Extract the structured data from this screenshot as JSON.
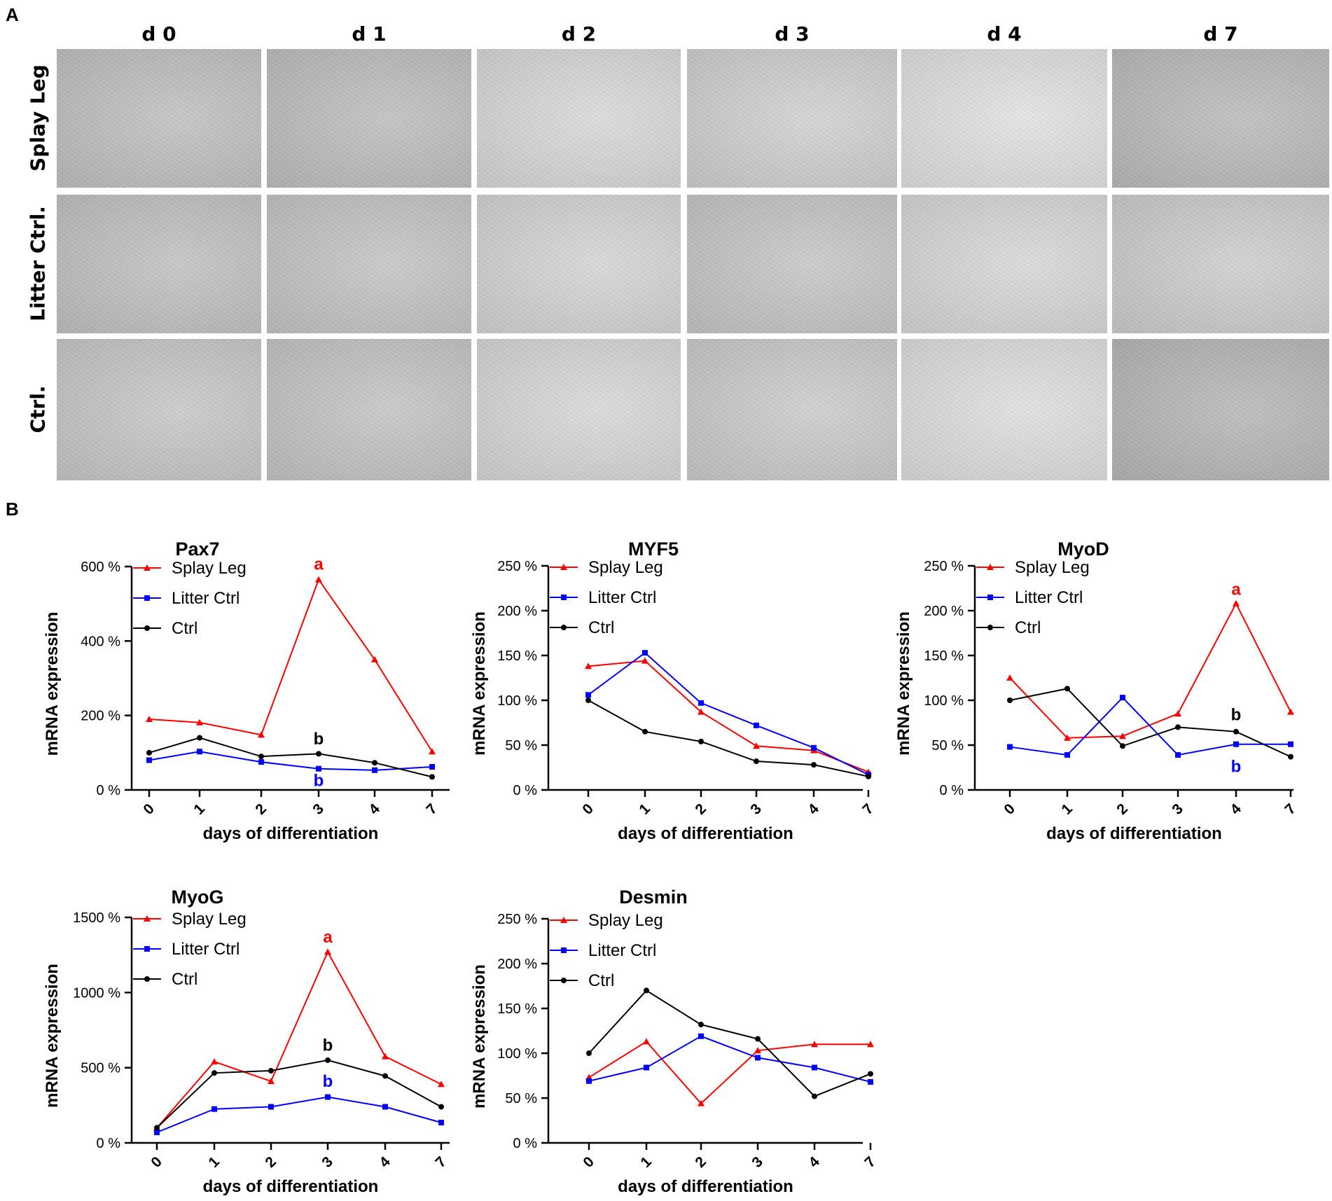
{
  "panelA": {
    "letter": "A",
    "columns": [
      "d 0",
      "d 1",
      "d 2",
      "d 3",
      "d 4",
      "d 7"
    ],
    "rows": [
      "Splay Leg",
      "Litter Ctrl.",
      "Ctrl."
    ],
    "image_tones": [
      [
        "#c2c2c2",
        "#c0c0c0",
        "#dadada",
        "#d2d2d2",
        "#e3e3e3",
        "#bdbdbd"
      ],
      [
        "#c3c3c3",
        "#c6c6c6",
        "#d6d6d6",
        "#c8c8c8",
        "#d9d9d9",
        "#cfcfcf"
      ],
      [
        "#c9c9c9",
        "#c6c6c6",
        "#d9d9d9",
        "#cdcdcd",
        "#e0e0e0",
        "#b9b9b9"
      ]
    ]
  },
  "panelB": {
    "letter": "B"
  },
  "chart_data": [
    {
      "type": "line",
      "title": "Pax7",
      "xlabel": "days of differentiation",
      "ylabel": "mRNA expression",
      "categories": [
        "0",
        "1",
        "2",
        "3",
        "4",
        "7"
      ],
      "yticks": [
        "0 %",
        "200 %",
        "400 %",
        "600 %"
      ],
      "ylim": [
        0,
        600
      ],
      "legend_position": "top-left",
      "series": [
        {
          "name": "Splay Leg",
          "color": "#ff0000",
          "marker": "triangle",
          "values": [
            190,
            181,
            148,
            565,
            350,
            103
          ]
        },
        {
          "name": "Litter Ctrl",
          "color": "#0000ff",
          "marker": "square",
          "values": [
            80,
            103,
            75,
            57,
            53,
            62
          ]
        },
        {
          "name": "Ctrl",
          "color": "#000000",
          "marker": "circle",
          "values": [
            100,
            140,
            90,
            97,
            73,
            35
          ]
        }
      ],
      "annotations": [
        {
          "text": "a",
          "color": "#ff0000",
          "x": "3",
          "y": 607
        },
        {
          "text": "b",
          "color": "#000000",
          "x": "3",
          "y": 137
        },
        {
          "text": "b",
          "color": "#0000ff",
          "x": "3",
          "y": 25
        }
      ]
    },
    {
      "type": "line",
      "title": "MYF5",
      "xlabel": "days of differentiation",
      "ylabel": "mRNA expression",
      "categories": [
        "0",
        "1",
        "2",
        "3",
        "4",
        "7"
      ],
      "yticks": [
        "0 %",
        "50 %",
        "100 %",
        "150 %",
        "200 %",
        "250 %"
      ],
      "ylim": [
        0,
        250
      ],
      "legend_position": "top-left",
      "series": [
        {
          "name": "Splay Leg",
          "color": "#ff0000",
          "marker": "triangle",
          "values": [
            138,
            144,
            87,
            49,
            44,
            20
          ]
        },
        {
          "name": "Litter Ctrl",
          "color": "#0000ff",
          "marker": "square",
          "values": [
            106,
            153,
            97,
            72,
            47,
            17
          ]
        },
        {
          "name": "Ctrl",
          "color": "#000000",
          "marker": "circle",
          "values": [
            100,
            65,
            54,
            32,
            28,
            15
          ]
        }
      ],
      "annotations": []
    },
    {
      "type": "line",
      "title": "MyoD",
      "xlabel": "days of differentiation",
      "ylabel": "mRNA expression",
      "categories": [
        "0",
        "1",
        "2",
        "3",
        "4",
        "7"
      ],
      "yticks": [
        "0 %",
        "50 %",
        "100 %",
        "150 %",
        "200 %",
        "250 %"
      ],
      "ylim": [
        0,
        250
      ],
      "legend_position": "top-left",
      "series": [
        {
          "name": "Splay Leg",
          "color": "#ff0000",
          "marker": "triangle",
          "values": [
            125,
            58,
            60,
            85,
            208,
            87
          ]
        },
        {
          "name": "Litter Ctrl",
          "color": "#0000ff",
          "marker": "square",
          "values": [
            48,
            39,
            103,
            39,
            51,
            51
          ]
        },
        {
          "name": "Ctrl",
          "color": "#000000",
          "marker": "circle",
          "values": [
            100,
            113,
            49,
            70,
            65,
            37
          ]
        }
      ],
      "annotations": [
        {
          "text": "a",
          "color": "#ff0000",
          "x": "4",
          "y": 224
        },
        {
          "text": "b",
          "color": "#000000",
          "x": "4",
          "y": 84
        },
        {
          "text": "b",
          "color": "#0000ff",
          "x": "4",
          "y": 26
        }
      ]
    },
    {
      "type": "line",
      "title": "MyoG",
      "xlabel": "days of differentiation",
      "ylabel": "mRNA expression",
      "categories": [
        "0",
        "1",
        "2",
        "3",
        "4",
        "7"
      ],
      "yticks": [
        "0 %",
        "500 %",
        "1000 %",
        "1500 %"
      ],
      "ylim": [
        0,
        1500
      ],
      "legend_position": "top-left",
      "series": [
        {
          "name": "Splay Leg",
          "color": "#ff0000",
          "marker": "triangle",
          "values": [
            100,
            540,
            410,
            1270,
            575,
            390
          ]
        },
        {
          "name": "Litter Ctrl",
          "color": "#0000ff",
          "marker": "square",
          "values": [
            70,
            225,
            240,
            305,
            240,
            135
          ]
        },
        {
          "name": "Ctrl",
          "color": "#000000",
          "marker": "circle",
          "values": [
            100,
            465,
            480,
            550,
            445,
            240
          ]
        }
      ],
      "annotations": [
        {
          "text": "a",
          "color": "#ff0000",
          "x": "3",
          "y": 1370
        },
        {
          "text": "b",
          "color": "#000000",
          "x": "3",
          "y": 650
        },
        {
          "text": "b",
          "color": "#0000ff",
          "x": "3",
          "y": 410
        }
      ]
    },
    {
      "type": "line",
      "title": "Desmin",
      "xlabel": "days of differentiation",
      "ylabel": "mRNA expression",
      "categories": [
        "0",
        "1",
        "2",
        "3",
        "4",
        "7"
      ],
      "yticks": [
        "0 %",
        "50 %",
        "100 %",
        "150 %",
        "200 %",
        "250 %"
      ],
      "ylim": [
        0,
        250
      ],
      "legend_position": "top-left",
      "series": [
        {
          "name": "Splay Leg",
          "color": "#ff0000",
          "marker": "triangle",
          "values": [
            73,
            113,
            44,
            103,
            110,
            110
          ]
        },
        {
          "name": "Litter Ctrl",
          "color": "#0000ff",
          "marker": "square",
          "values": [
            69,
            84,
            119,
            95,
            84,
            68
          ]
        },
        {
          "name": "Ctrl",
          "color": "#000000",
          "marker": "circle",
          "values": [
            100,
            170,
            132,
            116,
            52,
            77
          ]
        }
      ],
      "annotations": []
    }
  ]
}
